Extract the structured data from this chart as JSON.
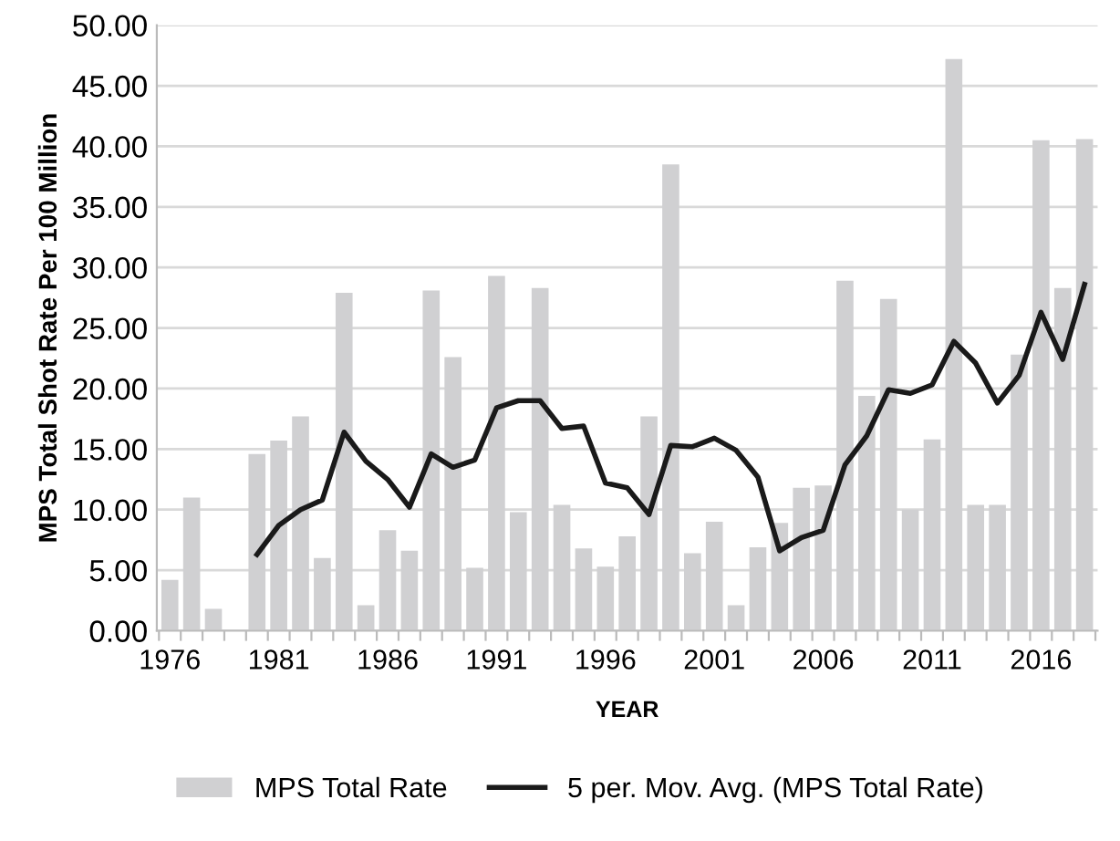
{
  "chart_data": {
    "type": "bar",
    "xlabel": "YEAR",
    "ylabel": "MPS Total Shot Rate Per 100 Million",
    "categories": [
      "1976",
      null,
      null,
      null,
      null,
      "1981",
      null,
      null,
      null,
      null,
      "1986",
      null,
      null,
      null,
      null,
      "1991",
      null,
      null,
      null,
      null,
      "1996",
      null,
      null,
      null,
      null,
      "2001",
      null,
      null,
      null,
      null,
      "2006",
      null,
      null,
      null,
      null,
      "2011",
      null,
      null,
      null,
      null,
      "2016",
      null,
      null
    ],
    "series": [
      {
        "name": "MPS Total Rate",
        "color": "#d0d0d2",
        "values": [
          4.2,
          11.0,
          1.8,
          null,
          14.6,
          15.7,
          17.7,
          6.0,
          27.9,
          2.1,
          8.3,
          6.6,
          28.1,
          22.6,
          5.2,
          29.3,
          9.8,
          28.3,
          10.4,
          6.8,
          5.3,
          7.8,
          17.7,
          38.5,
          6.4,
          9.0,
          2.1,
          6.9,
          8.9,
          11.8,
          12.0,
          28.9,
          19.4,
          27.4,
          10.0,
          15.8,
          47.2,
          10.4,
          10.4,
          22.8,
          40.5,
          28.3,
          40.6
        ]
      },
      {
        "name": "5 per. Mov. Avg. (MPS Total Rate)",
        "type": "line",
        "color": "#1a1a1a",
        "values": [
          null,
          null,
          null,
          null,
          6.3,
          8.7,
          10.0,
          10.8,
          16.4,
          14.0,
          12.5,
          10.2,
          14.6,
          13.5,
          14.1,
          18.4,
          19.0,
          19.0,
          16.7,
          16.9,
          12.2,
          11.8,
          9.6,
          15.3,
          15.2,
          15.9,
          14.9,
          12.7,
          6.6,
          7.7,
          8.3,
          13.7,
          16.1,
          19.9,
          19.6,
          20.3,
          23.9,
          22.1,
          18.8,
          21.1,
          26.3,
          22.4,
          28.6
        ]
      }
    ],
    "ylim": [
      0,
      50
    ],
    "yticks": [
      {
        "value": 0,
        "label": "0.00"
      },
      {
        "value": 5,
        "label": "5.00"
      },
      {
        "value": 10,
        "label": "10.00"
      },
      {
        "value": 15,
        "label": "15.00"
      },
      {
        "value": 20,
        "label": "20.00"
      },
      {
        "value": 25,
        "label": "25.00"
      },
      {
        "value": 30,
        "label": "30.00"
      },
      {
        "value": 35,
        "label": "35.00"
      },
      {
        "value": 40,
        "label": "40.00"
      },
      {
        "value": 45,
        "label": "45.00"
      },
      {
        "value": 50,
        "label": "50.00"
      }
    ],
    "grid": "y",
    "legend": "bottom",
    "marker": "none",
    "line_style": "solid"
  }
}
